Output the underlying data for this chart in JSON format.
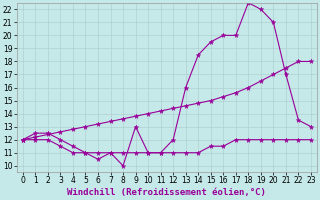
{
  "bg_color": "#c5e8e8",
  "line_color": "#990099",
  "grid_color": "#b0d0d0",
  "xlabel": "Windchill (Refroidissement éolien,°C)",
  "xlim": [
    -0.5,
    23.5
  ],
  "ylim": [
    9.5,
    22.5
  ],
  "xticks": [
    0,
    1,
    2,
    3,
    4,
    5,
    6,
    7,
    8,
    9,
    10,
    11,
    12,
    13,
    14,
    15,
    16,
    17,
    18,
    19,
    20,
    21,
    22,
    23
  ],
  "yticks": [
    10,
    11,
    12,
    13,
    14,
    15,
    16,
    17,
    18,
    19,
    20,
    21,
    22
  ],
  "curve1_x": [
    0,
    1,
    2,
    3,
    4,
    5,
    6,
    7,
    8,
    9,
    10,
    11,
    12,
    13,
    14,
    15,
    16,
    17,
    18,
    19,
    20,
    21,
    22,
    23
  ],
  "curve1_y": [
    12,
    12.5,
    12.5,
    12,
    11.5,
    11,
    10.5,
    11,
    10,
    13,
    11,
    11,
    12,
    16,
    18.5,
    19.5,
    20,
    20,
    22.5,
    22,
    21,
    17,
    13.5,
    13
  ],
  "curve2_x": [
    0,
    1,
    2,
    3,
    4,
    5,
    6,
    7,
    8,
    9,
    10,
    11,
    12,
    13,
    14,
    15,
    16,
    17,
    18,
    19,
    20,
    21,
    22,
    23
  ],
  "curve2_y": [
    12,
    12.2,
    12.4,
    12.6,
    12.8,
    13,
    13.2,
    13.4,
    13.6,
    13.8,
    14,
    14.2,
    14.4,
    14.6,
    14.8,
    15,
    15.3,
    15.6,
    16,
    16.5,
    17,
    17.5,
    18,
    18
  ],
  "curve3_x": [
    0,
    1,
    2,
    3,
    4,
    5,
    6,
    7,
    8,
    9,
    10,
    11,
    12,
    13,
    14,
    15,
    16,
    17,
    18,
    19,
    20,
    21,
    22,
    23
  ],
  "curve3_y": [
    12,
    12,
    12,
    11.5,
    11,
    11,
    11,
    11,
    11,
    11,
    11,
    11,
    11,
    11,
    11,
    11.5,
    11.5,
    12,
    12,
    12,
    12,
    12,
    12,
    12
  ],
  "tick_fs": 5.5,
  "label_fs": 6.5
}
